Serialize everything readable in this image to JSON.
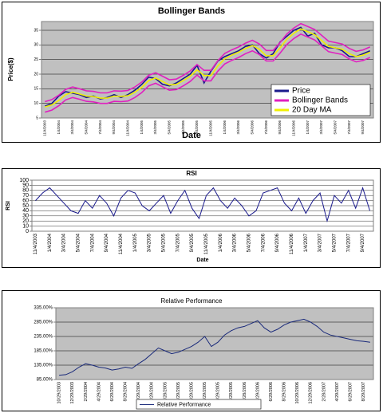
{
  "chart_data": [
    {
      "type": "line",
      "title": "Bollinger Bands",
      "x_label": "Date",
      "y_label": "Price($)",
      "categories": [
        "11/4/2003",
        null,
        "1/4/2004",
        null,
        "3/4/2004",
        null,
        "5/4/2004",
        null,
        "7/4/2004",
        null,
        "9/4/2004",
        null,
        "11/4/2004",
        null,
        "1/4/2005",
        null,
        "3/4/2005",
        null,
        "5/4/2005",
        null,
        "7/4/2005",
        null,
        "9/4/2005",
        null,
        "11/4/2005",
        null,
        "1/4/2006",
        null,
        "3/4/2006",
        null,
        "5/4/2006",
        null,
        "7/4/2006",
        null,
        "9/4/2006",
        null,
        "11/4/2006",
        null,
        "1/4/2007",
        null,
        "3/4/2007",
        null,
        "5/4/2007",
        null,
        "7/4/2007",
        null,
        "9/4/2007",
        null
      ],
      "series": [
        {
          "name": "Price",
          "color": "#1a1a8c",
          "values": [
            9,
            10,
            12.5,
            14,
            13.5,
            13,
            12,
            12.5,
            11.5,
            12,
            13,
            12,
            13,
            14.5,
            16.5,
            19,
            18.5,
            16.5,
            16,
            17,
            18.5,
            20,
            23,
            17,
            21,
            24.5,
            26,
            27,
            28,
            29.5,
            30,
            27,
            25.5,
            27,
            31,
            33,
            35,
            36,
            33,
            34,
            30,
            29,
            29,
            28,
            26,
            26,
            27,
            28
          ]
        },
        {
          "name": "Bollinger Bands",
          "color": "#e020c0",
          "values": [
            10.6,
            11.3,
            12.8,
            14.8,
            15.6,
            15,
            14.3,
            14.1,
            13.6,
            13.6,
            14.3,
            14.2,
            14.4,
            15.6,
            17.3,
            19.6,
            20.5,
            19.3,
            18.1,
            18.3,
            19.6,
            21.1,
            23.3,
            21.3,
            21.3,
            24.6,
            27.1,
            28.3,
            29.3,
            30.6,
            31.6,
            30.3,
            28.1,
            28.1,
            30.8,
            33.8,
            35.8,
            37.3,
            36.3,
            35.3,
            33.3,
            31.3,
            30.8,
            30.3,
            28.8,
            27.8,
            28.3,
            29.3
          ],
          "values_lower": [
            7,
            7.7,
            9.2,
            11.2,
            12,
            11.4,
            10.7,
            10.5,
            10,
            10,
            10.7,
            10.6,
            10.8,
            12,
            13.7,
            16,
            16.9,
            15.7,
            14.5,
            14.7,
            16,
            17.5,
            19.7,
            17.7,
            17.7,
            21,
            23.5,
            24.7,
            25.7,
            27,
            28,
            26.7,
            24.5,
            24.5,
            27.2,
            30.2,
            32.2,
            33.7,
            32.7,
            31.7,
            29.7,
            27.7,
            27.2,
            26.7,
            25.2,
            24.2,
            24.7,
            25.7
          ]
        },
        {
          "name": "20 Day MA",
          "color": "#f0f000",
          "values": [
            8.8,
            9.5,
            11,
            13,
            13.8,
            13.2,
            12.5,
            12.3,
            11.8,
            11.8,
            12.5,
            12.4,
            12.6,
            13.8,
            15.5,
            17.8,
            18.7,
            17.5,
            16.3,
            16.5,
            17.8,
            19.3,
            21.5,
            19.5,
            19.5,
            22.8,
            25.3,
            26.5,
            27.5,
            28.8,
            29.8,
            28.5,
            26.3,
            26.3,
            29,
            32,
            34,
            35.5,
            34.5,
            33.5,
            31.5,
            29.5,
            29,
            28.5,
            27,
            26,
            26.5,
            27.5
          ]
        }
      ],
      "ylim": [
        5,
        38
      ],
      "yticks": [
        5,
        10,
        15,
        20,
        25,
        30,
        35
      ],
      "grid": true,
      "legend": "lower right"
    },
    {
      "type": "line",
      "title": "RSI",
      "x_label": "Date",
      "y_label": "RSI",
      "categories": [
        "11/4/2003",
        null,
        "1/4/2004",
        null,
        "3/4/2004",
        null,
        "5/4/2004",
        null,
        "7/4/2004",
        null,
        "9/4/2004",
        null,
        "11/4/2004",
        null,
        "1/4/2005",
        null,
        "3/4/2005",
        null,
        "5/4/2005",
        null,
        "7/4/2005",
        null,
        "9/4/2005",
        null,
        "11/4/2005",
        null,
        "1/4/2006",
        null,
        "3/4/2006",
        null,
        "5/4/2006",
        null,
        "7/4/2006",
        null,
        "9/4/2006",
        null,
        "11/4/2006",
        null,
        "1/4/2007",
        null,
        "3/4/2007",
        null,
        "5/4/2007",
        null,
        "7/4/2007",
        null,
        "9/4/2007",
        null
      ],
      "series": [
        {
          "color": "#1a1a8c",
          "values": [
            60,
            75,
            85,
            70,
            55,
            40,
            35,
            60,
            45,
            70,
            55,
            30,
            65,
            80,
            75,
            50,
            40,
            55,
            70,
            35,
            60,
            80,
            45,
            25,
            70,
            85,
            60,
            45,
            65,
            50,
            30,
            40,
            75,
            80,
            85,
            55,
            40,
            65,
            35,
            60,
            75,
            20,
            70,
            55,
            80,
            45,
            85,
            40
          ]
        }
      ],
      "ylim": [
        0,
        100
      ],
      "yticks": [
        0,
        10,
        20,
        30,
        40,
        50,
        60,
        70,
        80,
        90,
        100
      ],
      "grid": true
    },
    {
      "type": "line",
      "title": "Relative Performance",
      "categories": [
        "10/29/2003",
        null,
        "12/29/2003",
        null,
        "2/29/2004",
        null,
        "4/29/2004",
        null,
        "6/29/2004",
        null,
        "8/29/2004",
        null,
        "10/29/2004",
        null,
        "12/29/2004",
        null,
        "2/28/2005",
        null,
        "4/29/2005",
        null,
        "6/29/2005",
        null,
        "8/29/2005",
        null,
        "10/29/2005",
        null,
        "12/29/2005",
        null,
        "2/28/2006",
        null,
        "4/29/2006",
        null,
        "6/29/2006",
        null,
        "8/29/2006",
        null,
        "10/29/2006",
        null,
        "12/29/2006",
        null,
        "2/28/2007",
        null,
        "4/29/2007",
        null,
        "6/29/2007",
        null,
        "8/29/2007",
        null
      ],
      "series": [
        {
          "name": "Relative Performance",
          "color": "#1a2a7a",
          "values": [
            100,
            102,
            112,
            128,
            140,
            135,
            128,
            125,
            118,
            122,
            128,
            124,
            140,
            155,
            175,
            195,
            185,
            175,
            180,
            190,
            200,
            215,
            235,
            200,
            215,
            240,
            255,
            265,
            270,
            280,
            290,
            265,
            250,
            260,
            275,
            285,
            290,
            295,
            285,
            270,
            250,
            240,
            235,
            230,
            225,
            220,
            218,
            215
          ]
        }
      ],
      "ylim": [
        85,
        335
      ],
      "yticks": [
        {
          "value": 85,
          "label": "85.00%"
        },
        {
          "value": 135,
          "label": "135.00%"
        },
        {
          "value": 185,
          "label": "185.00%"
        },
        {
          "value": 235,
          "label": "235.00%"
        },
        {
          "value": 285,
          "label": "285.00%"
        },
        {
          "value": 335,
          "label": "335.00%"
        }
      ],
      "grid": true,
      "legend": "bottom"
    }
  ]
}
